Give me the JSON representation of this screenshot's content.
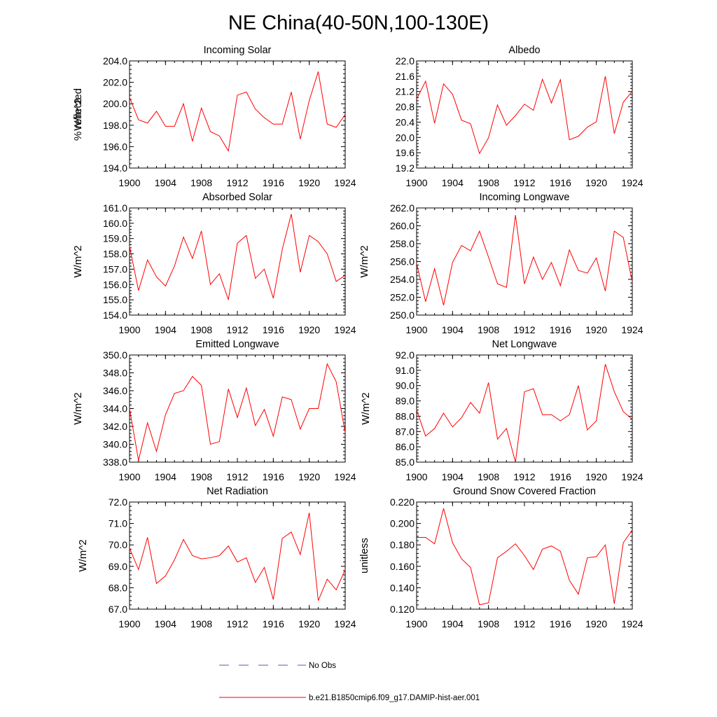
{
  "title": "NE China(40-50N,100-130E)",
  "legend": [
    {
      "label": "No Obs",
      "color": "#5a5aa8",
      "dash": true
    },
    {
      "label": "b.e21.B1850cmip6.f09_g17.DAMIP-hist-aer.001",
      "color": "#ff0000",
      "dash": false
    }
  ],
  "chart_data": [
    {
      "type": "line",
      "title": "Incoming Solar",
      "ylabel": "W/m^2",
      "ylim": [
        194.0,
        204.0
      ],
      "xlim": [
        1900,
        1924
      ],
      "yticks": [
        "194.0",
        "196.0",
        "198.0",
        "200.0",
        "202.0",
        "204.0"
      ],
      "xticks": [
        "1900",
        "1904",
        "1908",
        "1912",
        "1916",
        "1920",
        "1924"
      ],
      "x": [
        1900,
        1901,
        1902,
        1903,
        1904,
        1905,
        1906,
        1907,
        1908,
        1909,
        1910,
        1911,
        1912,
        1913,
        1914,
        1915,
        1916,
        1917,
        1918,
        1919,
        1920,
        1921,
        1922,
        1923,
        1924
      ],
      "series": [
        {
          "values": [
            200.6,
            198.5,
            198.2,
            199.3,
            197.9,
            197.9,
            200.0,
            196.5,
            199.6,
            197.4,
            197.0,
            195.6,
            200.8,
            201.1,
            199.5,
            198.7,
            198.1,
            198.1,
            201.1,
            196.7,
            200.3,
            203.0,
            198.1,
            197.8,
            199.0
          ]
        }
      ]
    },
    {
      "type": "line",
      "title": "Albedo",
      "ylabel": "% reflected",
      "ylim": [
        19.2,
        22.0
      ],
      "xlim": [
        1900,
        1924
      ],
      "yticks": [
        "19.2",
        "19.6",
        "20.0",
        "20.4",
        "20.8",
        "21.2",
        "21.6",
        "22.0"
      ],
      "xticks": [
        "1900",
        "1904",
        "1908",
        "1912",
        "1916",
        "1920",
        "1924"
      ],
      "x": [
        1900,
        1901,
        1902,
        1903,
        1904,
        1905,
        1906,
        1907,
        1908,
        1909,
        1910,
        1911,
        1912,
        1913,
        1914,
        1915,
        1916,
        1917,
        1918,
        1919,
        1920,
        1921,
        1922,
        1923,
        1924
      ],
      "series": [
        {
          "values": [
            21.0,
            21.47,
            20.37,
            21.4,
            21.13,
            20.45,
            20.36,
            19.58,
            19.99,
            20.85,
            20.32,
            20.57,
            20.87,
            20.71,
            21.52,
            20.9,
            21.51,
            19.94,
            20.03,
            20.27,
            20.41,
            21.6,
            20.1,
            20.92,
            21.21
          ]
        }
      ]
    },
    {
      "type": "line",
      "title": "Absorbed Solar",
      "ylabel": "W/m^2",
      "ylim": [
        154.0,
        161.0
      ],
      "xlim": [
        1900,
        1924
      ],
      "yticks": [
        "154.0",
        "155.0",
        "156.0",
        "157.0",
        "158.0",
        "159.0",
        "160.0",
        "161.0"
      ],
      "xticks": [
        "1900",
        "1904",
        "1908",
        "1912",
        "1916",
        "1920",
        "1924"
      ],
      "x": [
        1900,
        1901,
        1902,
        1903,
        1904,
        1905,
        1906,
        1907,
        1908,
        1909,
        1910,
        1911,
        1912,
        1913,
        1914,
        1915,
        1916,
        1917,
        1918,
        1919,
        1920,
        1921,
        1922,
        1923,
        1924
      ],
      "series": [
        {
          "values": [
            158.5,
            155.6,
            157.6,
            156.5,
            155.9,
            157.2,
            159.1,
            157.7,
            159.5,
            156.0,
            156.7,
            155.0,
            158.7,
            159.2,
            156.4,
            157.0,
            155.1,
            158.3,
            160.6,
            156.8,
            159.2,
            158.8,
            158.0,
            156.2,
            156.6
          ]
        }
      ]
    },
    {
      "type": "line",
      "title": "Incoming Longwave",
      "ylabel": "W/m^2",
      "ylim": [
        250.0,
        262.0
      ],
      "xlim": [
        1900,
        1924
      ],
      "yticks": [
        "250.0",
        "252.0",
        "254.0",
        "256.0",
        "258.0",
        "260.0",
        "262.0"
      ],
      "xticks": [
        "1900",
        "1904",
        "1908",
        "1912",
        "1916",
        "1920",
        "1924"
      ],
      "x": [
        1900,
        1901,
        1902,
        1903,
        1904,
        1905,
        1906,
        1907,
        1908,
        1909,
        1910,
        1911,
        1912,
        1913,
        1914,
        1915,
        1916,
        1917,
        1918,
        1919,
        1920,
        1921,
        1922,
        1923,
        1924
      ],
      "series": [
        {
          "values": [
            255.8,
            251.5,
            255.2,
            251.1,
            255.9,
            257.8,
            257.2,
            259.4,
            256.5,
            253.5,
            253.1,
            261.2,
            253.5,
            256.5,
            254.0,
            255.9,
            253.3,
            257.3,
            255.0,
            254.7,
            256.4,
            252.7,
            259.4,
            258.7,
            253.7
          ]
        }
      ]
    },
    {
      "type": "line",
      "title": "Emitted Longwave",
      "ylabel": "W/m^2",
      "ylim": [
        338.0,
        350.0
      ],
      "xlim": [
        1900,
        1924
      ],
      "yticks": [
        "338.0",
        "340.0",
        "342.0",
        "344.0",
        "346.0",
        "348.0",
        "350.0"
      ],
      "xticks": [
        "1900",
        "1904",
        "1908",
        "1912",
        "1916",
        "1920",
        "1924"
      ],
      "x": [
        1900,
        1901,
        1902,
        1903,
        1904,
        1905,
        1906,
        1907,
        1908,
        1909,
        1910,
        1911,
        1912,
        1913,
        1914,
        1915,
        1916,
        1917,
        1918,
        1919,
        1920,
        1921,
        1922,
        1923,
        1924
      ],
      "series": [
        {
          "values": [
            344.0,
            338.2,
            342.4,
            339.2,
            343.3,
            345.7,
            346.0,
            347.6,
            346.6,
            340.0,
            340.3,
            346.2,
            343.0,
            346.3,
            342.1,
            343.9,
            340.9,
            345.3,
            345.0,
            341.7,
            344.0,
            344.0,
            349.0,
            347.0,
            341.3
          ]
        }
      ]
    },
    {
      "type": "line",
      "title": "Net Longwave",
      "ylabel": "W/m^2",
      "ylim": [
        85.0,
        92.0
      ],
      "xlim": [
        1900,
        1924
      ],
      "yticks": [
        "85.0",
        "86.0",
        "87.0",
        "88.0",
        "89.0",
        "90.0",
        "91.0",
        "92.0"
      ],
      "xticks": [
        "1900",
        "1904",
        "1908",
        "1912",
        "1916",
        "1920",
        "1924"
      ],
      "x": [
        1900,
        1901,
        1902,
        1903,
        1904,
        1905,
        1906,
        1907,
        1908,
        1909,
        1910,
        1911,
        1912,
        1913,
        1914,
        1915,
        1916,
        1917,
        1918,
        1919,
        1920,
        1921,
        1922,
        1923,
        1924
      ],
      "series": [
        {
          "values": [
            88.4,
            86.7,
            87.2,
            88.2,
            87.3,
            87.9,
            88.9,
            88.2,
            90.2,
            86.5,
            87.2,
            85.0,
            89.6,
            89.8,
            88.1,
            88.1,
            87.7,
            88.1,
            90.0,
            87.1,
            87.7,
            91.4,
            89.6,
            88.3,
            87.8
          ]
        }
      ]
    },
    {
      "type": "line",
      "title": "Net Radiation",
      "ylabel": "W/m^2",
      "ylim": [
        67.0,
        72.0
      ],
      "xlim": [
        1900,
        1924
      ],
      "yticks": [
        "67.0",
        "68.0",
        "69.0",
        "70.0",
        "71.0",
        "72.0"
      ],
      "xticks": [
        "1900",
        "1904",
        "1908",
        "1912",
        "1916",
        "1920",
        "1924"
      ],
      "x": [
        1900,
        1901,
        1902,
        1903,
        1904,
        1905,
        1906,
        1907,
        1908,
        1909,
        1910,
        1911,
        1912,
        1913,
        1914,
        1915,
        1916,
        1917,
        1918,
        1919,
        1920,
        1921,
        1922,
        1923,
        1924
      ],
      "series": [
        {
          "values": [
            69.85,
            68.85,
            70.35,
            68.2,
            68.55,
            69.3,
            70.25,
            69.5,
            69.35,
            69.4,
            69.5,
            69.95,
            69.2,
            69.4,
            68.25,
            68.95,
            67.45,
            70.3,
            70.6,
            69.55,
            71.5,
            67.4,
            68.4,
            67.9,
            68.85
          ]
        }
      ]
    },
    {
      "type": "line",
      "title": "Ground Snow Covered Fraction",
      "ylabel": "unitless",
      "ylim": [
        0.12,
        0.22
      ],
      "xlim": [
        1900,
        1924
      ],
      "yticks": [
        "0.120",
        "0.140",
        "0.160",
        "0.180",
        "0.200",
        "0.220"
      ],
      "xticks": [
        "1900",
        "1904",
        "1908",
        "1912",
        "1916",
        "1920",
        "1924"
      ],
      "x": [
        1900,
        1901,
        1902,
        1903,
        1904,
        1905,
        1906,
        1907,
        1908,
        1909,
        1910,
        1911,
        1912,
        1913,
        1914,
        1915,
        1916,
        1917,
        1918,
        1919,
        1920,
        1921,
        1922,
        1923,
        1924
      ],
      "series": [
        {
          "values": [
            0.187,
            0.187,
            0.181,
            0.214,
            0.182,
            0.167,
            0.159,
            0.124,
            0.126,
            0.168,
            0.174,
            0.181,
            0.17,
            0.157,
            0.176,
            0.179,
            0.174,
            0.147,
            0.134,
            0.168,
            0.169,
            0.18,
            0.125,
            0.182,
            0.194
          ]
        }
      ]
    }
  ]
}
